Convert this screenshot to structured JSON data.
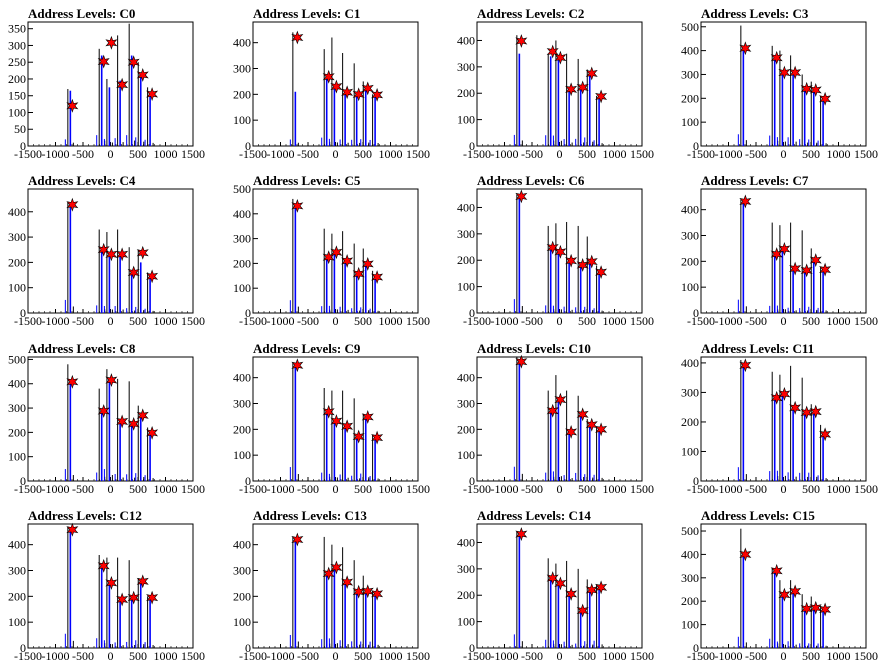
{
  "chart_data": [
    {
      "type": "bar",
      "title": "Address Levels: C0",
      "xlim": [
        -1500,
        1500
      ],
      "ylim": [
        0,
        370
      ],
      "yticks": [
        0,
        50,
        100,
        150,
        200,
        250,
        300,
        350
      ],
      "x": [
        -730,
        -160,
        -20,
        175,
        385,
        550,
        720
      ],
      "total": [
        170,
        290,
        200,
        330,
        365,
        250,
        175
      ],
      "signal": [
        165,
        270,
        175,
        195,
        270,
        215,
        155
      ],
      "peaks": [
        120,
        252,
        308,
        183,
        250,
        212,
        155
      ]
    },
    {
      "type": "bar",
      "title": "Address Levels: C1",
      "xlim": [
        -1500,
        1500
      ],
      "ylim": [
        0,
        480
      ],
      "yticks": [
        0,
        100,
        200,
        300,
        400
      ],
      "x": [
        -730,
        -160,
        -20,
        175,
        385,
        550,
        720
      ],
      "total": [
        440,
        375,
        420,
        360,
        320,
        250,
        200
      ],
      "signal": [
        210,
        270,
        230,
        210,
        200,
        220,
        195
      ],
      "peaks": [
        420,
        268,
        230,
        208,
        200,
        223,
        198
      ]
    },
    {
      "type": "bar",
      "title": "Address Levels: C2",
      "xlim": [
        -1500,
        1500
      ],
      "ylim": [
        0,
        470
      ],
      "yticks": [
        0,
        100,
        200,
        300,
        400
      ],
      "x": [
        -730,
        -160,
        -20,
        175,
        385,
        550,
        720
      ],
      "total": [
        420,
        350,
        400,
        350,
        330,
        290,
        190
      ],
      "signal": [
        350,
        340,
        330,
        220,
        225,
        270,
        180
      ],
      "peaks": [
        398,
        358,
        335,
        215,
        222,
        275,
        188
      ]
    },
    {
      "type": "bar",
      "title": "Address Levels: C3",
      "xlim": [
        -1500,
        1500
      ],
      "ylim": [
        0,
        520
      ],
      "yticks": [
        0,
        100,
        200,
        300,
        400,
        500
      ],
      "x": [
        -730,
        -160,
        -20,
        175,
        385,
        550,
        720
      ],
      "total": [
        505,
        420,
        400,
        380,
        300,
        270,
        210
      ],
      "signal": [
        410,
        365,
        310,
        305,
        240,
        230,
        190
      ],
      "peaks": [
        410,
        370,
        308,
        308,
        240,
        235,
        198
      ]
    },
    {
      "type": "bar",
      "title": "Address Levels: C4",
      "xlim": [
        -1500,
        1500
      ],
      "ylim": [
        0,
        490
      ],
      "yticks": [
        0,
        100,
        200,
        300,
        400
      ],
      "x": [
        -730,
        -160,
        -20,
        175,
        385,
        550,
        720
      ],
      "total": [
        440,
        330,
        320,
        330,
        260,
        250,
        160
      ],
      "signal": [
        430,
        250,
        230,
        230,
        160,
        200,
        140
      ],
      "peaks": [
        428,
        250,
        232,
        232,
        160,
        238,
        145
      ]
    },
    {
      "type": "bar",
      "title": "Address Levels: C5",
      "xlim": [
        -1500,
        1500
      ],
      "ylim": [
        0,
        500
      ],
      "yticks": [
        0,
        100,
        200,
        300,
        400,
        500
      ],
      "x": [
        -730,
        -160,
        -20,
        175,
        385,
        550,
        720
      ],
      "total": [
        460,
        340,
        320,
        330,
        280,
        260,
        170
      ],
      "signal": [
        430,
        230,
        240,
        210,
        160,
        190,
        145
      ],
      "peaks": [
        432,
        225,
        245,
        210,
        158,
        198,
        145
      ]
    },
    {
      "type": "bar",
      "title": "Address Levels: C6",
      "xlim": [
        -1500,
        1500
      ],
      "ylim": [
        0,
        470
      ],
      "yticks": [
        0,
        100,
        200,
        300,
        400
      ],
      "x": [
        -730,
        -160,
        -20,
        175,
        385,
        550,
        720
      ],
      "total": [
        450,
        330,
        340,
        345,
        330,
        290,
        180
      ],
      "signal": [
        440,
        240,
        230,
        200,
        180,
        195,
        150
      ],
      "peaks": [
        442,
        248,
        232,
        198,
        182,
        195,
        155
      ]
    },
    {
      "type": "bar",
      "title": "Address Levels: C7",
      "xlim": [
        -1500,
        1500
      ],
      "ylim": [
        0,
        480
      ],
      "yticks": [
        0,
        100,
        200,
        300,
        400
      ],
      "x": [
        -730,
        -160,
        -20,
        175,
        385,
        550,
        720
      ],
      "total": [
        440,
        350,
        340,
        350,
        320,
        250,
        180
      ],
      "signal": [
        430,
        230,
        240,
        170,
        160,
        200,
        165
      ],
      "peaks": [
        432,
        228,
        248,
        172,
        165,
        205,
        168
      ]
    },
    {
      "type": "bar",
      "title": "Address Levels: C8",
      "xlim": [
        -1500,
        1500
      ],
      "ylim": [
        0,
        510
      ],
      "yticks": [
        0,
        100,
        200,
        300,
        400,
        500
      ],
      "x": [
        -730,
        -160,
        -20,
        175,
        385,
        550,
        720
      ],
      "total": [
        480,
        380,
        460,
        420,
        410,
        310,
        220
      ],
      "signal": [
        410,
        290,
        410,
        240,
        230,
        270,
        200
      ],
      "peaks": [
        408,
        288,
        415,
        245,
        235,
        270,
        198
      ]
    },
    {
      "type": "bar",
      "title": "Address Levels: C9",
      "xlim": [
        -1500,
        1500
      ],
      "ylim": [
        0,
        480
      ],
      "yticks": [
        0,
        100,
        200,
        300,
        400
      ],
      "x": [
        -730,
        -160,
        -20,
        175,
        385,
        550,
        720
      ],
      "total": [
        460,
        360,
        350,
        350,
        320,
        260,
        180
      ],
      "signal": [
        450,
        270,
        230,
        210,
        170,
        240,
        160
      ],
      "peaks": [
        448,
        268,
        232,
        212,
        172,
        248,
        168
      ]
    },
    {
      "type": "bar",
      "title": "Address Levels: C10",
      "xlim": [
        -1500,
        1500
      ],
      "ylim": [
        0,
        480
      ],
      "yticks": [
        0,
        100,
        200,
        300,
        400
      ],
      "x": [
        -730,
        -160,
        -20,
        175,
        385,
        550,
        720
      ],
      "total": [
        480,
        350,
        410,
        350,
        330,
        240,
        210
      ],
      "signal": [
        460,
        270,
        310,
        190,
        260,
        220,
        200
      ],
      "peaks": [
        462,
        272,
        315,
        190,
        258,
        218,
        200
      ]
    },
    {
      "type": "bar",
      "title": "Address Levels: C11",
      "xlim": [
        -1500,
        1500
      ],
      "ylim": [
        0,
        420
      ],
      "yticks": [
        0,
        100,
        200,
        300,
        400
      ],
      "x": [
        -730,
        -160,
        -20,
        175,
        385,
        550,
        720
      ],
      "total": [
        410,
        370,
        360,
        390,
        350,
        260,
        190
      ],
      "signal": [
        390,
        280,
        290,
        245,
        230,
        235,
        160
      ],
      "peaks": [
        392,
        282,
        295,
        248,
        232,
        235,
        158
      ]
    },
    {
      "type": "bar",
      "title": "Address Levels: C12",
      "xlim": [
        -1500,
        1500
      ],
      "ylim": [
        0,
        480
      ],
      "yticks": [
        0,
        100,
        200,
        300,
        400
      ],
      "x": [
        -730,
        -160,
        -20,
        175,
        385,
        550,
        720
      ],
      "total": [
        470,
        360,
        350,
        350,
        340,
        270,
        200
      ],
      "signal": [
        460,
        315,
        250,
        180,
        195,
        250,
        190
      ],
      "peaks": [
        458,
        318,
        252,
        188,
        195,
        258,
        195
      ]
    },
    {
      "type": "bar",
      "title": "Address Levels: C13",
      "xlim": [
        -1500,
        1500
      ],
      "ylim": [
        0,
        480
      ],
      "yticks": [
        0,
        100,
        200,
        300,
        400
      ],
      "x": [
        -730,
        -160,
        -20,
        175,
        385,
        550,
        720
      ],
      "total": [
        430,
        430,
        400,
        390,
        340,
        280,
        220
      ],
      "signal": [
        420,
        285,
        310,
        250,
        215,
        210,
        205
      ],
      "peaks": [
        420,
        288,
        312,
        255,
        218,
        220,
        210
      ]
    },
    {
      "type": "bar",
      "title": "Address Levels: C14",
      "xlim": [
        -1500,
        1500
      ],
      "ylim": [
        0,
        470
      ],
      "yticks": [
        0,
        100,
        200,
        300,
        400
      ],
      "x": [
        -730,
        -160,
        -20,
        175,
        385,
        550,
        720
      ],
      "total": [
        440,
        340,
        320,
        330,
        300,
        260,
        240
      ],
      "signal": [
        430,
        260,
        240,
        200,
        140,
        215,
        230
      ],
      "peaks": [
        432,
        265,
        245,
        205,
        142,
        220,
        230
      ]
    },
    {
      "type": "bar",
      "title": "Address Levels: C15",
      "xlim": [
        -1500,
        1500
      ],
      "ylim": [
        0,
        530
      ],
      "yticks": [
        0,
        100,
        200,
        300,
        400,
        500
      ],
      "x": [
        -730,
        -160,
        -20,
        175,
        385,
        550,
        720
      ],
      "total": [
        510,
        340,
        290,
        290,
        230,
        220,
        180
      ],
      "signal": [
        400,
        330,
        230,
        240,
        165,
        165,
        160
      ],
      "peaks": [
        400,
        330,
        228,
        242,
        168,
        172,
        165
      ]
    }
  ],
  "xticks": [
    -1500,
    -1000,
    -500,
    0,
    500,
    1000,
    1500
  ],
  "colors": {
    "total": "#000000",
    "signal": "#0000ff",
    "marker": "#ff0000",
    "marker_edge": "#000000"
  }
}
